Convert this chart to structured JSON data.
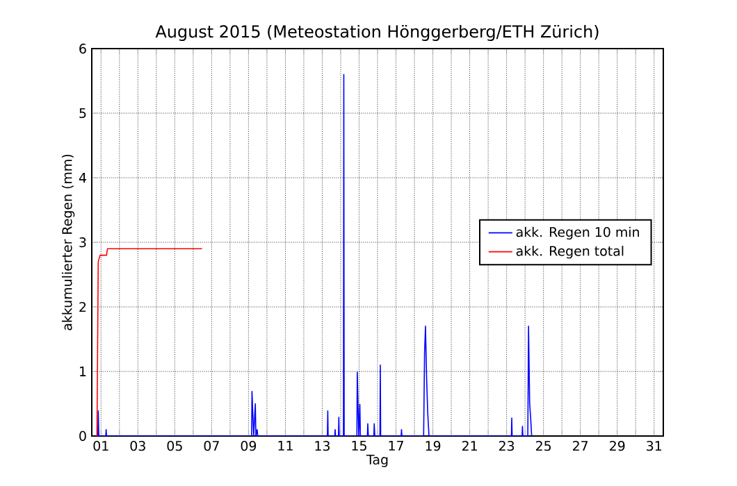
{
  "chart_data": {
    "type": "line",
    "title": "August 2015  (Meteostation Hönggerberg/ETH Zürich)",
    "xlabel": "Tag",
    "ylabel": "akkumulierter Regen (mm)",
    "xlim": [
      0.5,
      31.5
    ],
    "ylim": [
      0,
      6
    ],
    "yticks": [
      0,
      1,
      2,
      3,
      4,
      5,
      6
    ],
    "xticks": [
      {
        "value": 1,
        "label": "01"
      },
      {
        "value": 2,
        "label": null
      },
      {
        "value": 3,
        "label": "03"
      },
      {
        "value": 4,
        "label": null
      },
      {
        "value": 5,
        "label": "05"
      },
      {
        "value": 6,
        "label": null
      },
      {
        "value": 7,
        "label": "07"
      },
      {
        "value": 8,
        "label": null
      },
      {
        "value": 9,
        "label": "09"
      },
      {
        "value": 10,
        "label": null
      },
      {
        "value": 11,
        "label": "11"
      },
      {
        "value": 12,
        "label": null
      },
      {
        "value": 13,
        "label": "13"
      },
      {
        "value": 14,
        "label": null
      },
      {
        "value": 15,
        "label": "15"
      },
      {
        "value": 16,
        "label": null
      },
      {
        "value": 17,
        "label": "17"
      },
      {
        "value": 18,
        "label": null
      },
      {
        "value": 19,
        "label": "19"
      },
      {
        "value": 20,
        "label": null
      },
      {
        "value": 21,
        "label": "21"
      },
      {
        "value": 22,
        "label": null
      },
      {
        "value": 23,
        "label": "23"
      },
      {
        "value": 24,
        "label": null
      },
      {
        "value": 25,
        "label": "25"
      },
      {
        "value": 26,
        "label": null
      },
      {
        "value": 27,
        "label": "27"
      },
      {
        "value": 28,
        "label": null
      },
      {
        "value": 29,
        "label": "29"
      },
      {
        "value": 30,
        "label": null
      },
      {
        "value": 31,
        "label": "31"
      }
    ],
    "grid": true,
    "legend": "right",
    "marker": "none",
    "line_style": "solid",
    "series": [
      {
        "name": "akk. Regen 10 min",
        "color": "#0000ff",
        "x": [
          0.7,
          0.83,
          0.85,
          0.88,
          1.26,
          1.28,
          1.3,
          9.17,
          9.19,
          9.28,
          9.37,
          9.4,
          9.47,
          9.5,
          13.28,
          13.3,
          13.32,
          13.68,
          13.7,
          13.72,
          13.88,
          13.9,
          13.92,
          14.15,
          14.17,
          14.19,
          14.88,
          14.9,
          14.98,
          15.04,
          15.07,
          15.45,
          15.47,
          15.5,
          15.8,
          15.82,
          15.85,
          16.13,
          16.15,
          16.17,
          17.28,
          17.3,
          17.32,
          18.5,
          18.55,
          18.6,
          18.66,
          18.72,
          18.79,
          18.85,
          23.26,
          23.28,
          23.3,
          23.84,
          23.86,
          23.88,
          24.15,
          24.19,
          24.25,
          24.3,
          24.36
        ],
        "values": [
          0,
          0,
          0.39,
          0,
          0,
          0.1,
          0,
          0,
          0.69,
          0,
          0.5,
          0,
          0.1,
          0,
          0,
          0.39,
          0,
          0,
          0.1,
          0,
          0,
          0.29,
          0,
          0,
          5.6,
          0,
          0,
          0.99,
          0,
          0.49,
          0,
          0,
          0.19,
          0,
          0,
          0.19,
          0,
          0,
          1.1,
          0,
          0,
          0.1,
          0,
          0,
          1.29,
          1.7,
          0.9,
          0.37,
          0,
          0,
          0,
          0.28,
          0,
          0,
          0.15,
          0,
          0,
          1.7,
          0.5,
          0.3,
          0
        ]
      },
      {
        "name": "akk. Regen total",
        "color": "#ff0000",
        "x": [
          0.78,
          0.85,
          0.95,
          1.3,
          1.35,
          6.48
        ],
        "values": [
          0,
          2.7,
          2.8,
          2.8,
          2.9,
          2.9
        ]
      }
    ]
  }
}
